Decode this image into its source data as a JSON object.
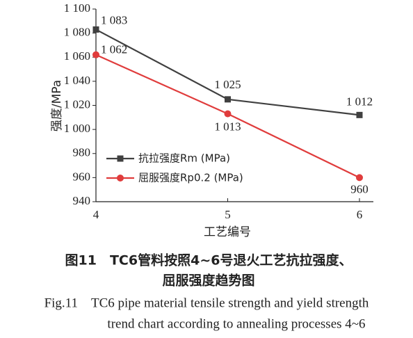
{
  "chart_data": {
    "type": "line",
    "x_label": "工艺编号",
    "y_label": "强度/MPa",
    "x": [
      4,
      5,
      6
    ],
    "xlim": [
      4,
      6
    ],
    "xticks": [
      4,
      5,
      6
    ],
    "ylim": [
      940,
      1100
    ],
    "yticks": [
      940,
      960,
      980,
      {
        "value": 1000,
        "label": "1 000"
      },
      {
        "value": 1020,
        "label": "1 020"
      },
      {
        "value": 1040,
        "label": "1 040"
      },
      {
        "value": 1060,
        "label": "1 060"
      },
      {
        "value": 1080,
        "label": "1 080"
      },
      {
        "value": 1100,
        "label": "1 100"
      }
    ],
    "series": [
      {
        "name": "抗拉强度Rm (MPa)",
        "color": "#404040",
        "marker": "square",
        "values": [
          1083,
          1025,
          1012
        ],
        "value_labels": [
          "1 083",
          "1 025",
          "1 012"
        ]
      },
      {
        "name": "屈服强度Rp0.2 (MPa)",
        "color": "#e03c3c",
        "marker": "circle",
        "values": [
          1062,
          1013,
          960
        ],
        "value_labels": [
          "1 062",
          "1 013",
          "960"
        ]
      }
    ],
    "caption_cn": [
      "图11　TC6管料按照4~6号退火工艺抗拉强度、",
      "屈服强度趋势图"
    ],
    "caption_en": [
      "Fig.11　TC6 pipe material tensile strength and yield strength",
      "trend chart according to annealing processes 4~6"
    ]
  }
}
